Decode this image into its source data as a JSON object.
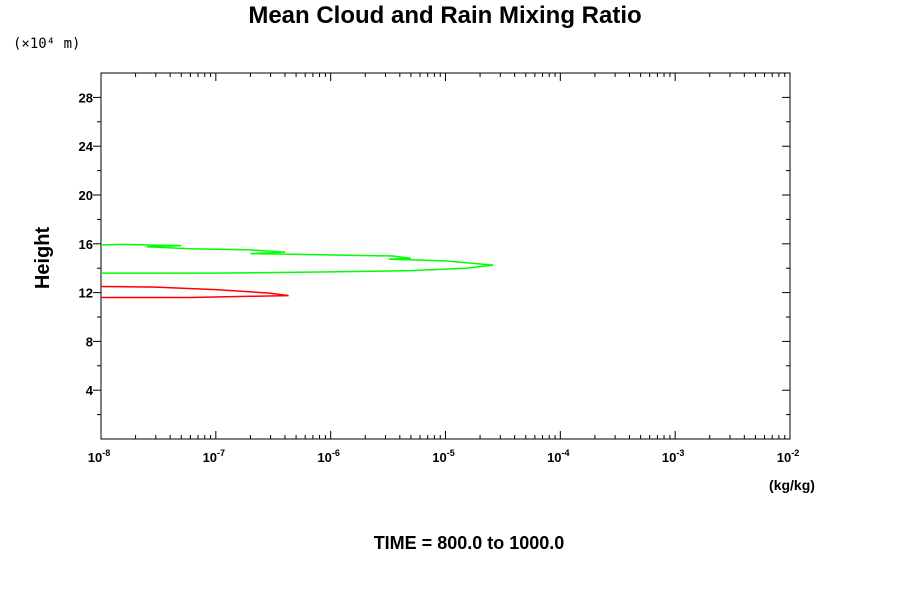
{
  "chart_data": {
    "type": "line",
    "title": "Mean Cloud and Rain Mixing Ratio",
    "ylabel": "Height",
    "y_unit": "(×10⁴ m)",
    "xlabel_unit": "(kg/kg)",
    "x_scale": "log",
    "xlim": [
      1e-08,
      0.01
    ],
    "ylim": [
      0,
      30
    ],
    "y_ticks": [
      4,
      8,
      12,
      16,
      20,
      24,
      28
    ],
    "x_tick_labels": [
      {
        "base": "10",
        "exp": "-8"
      },
      {
        "base": "10",
        "exp": "-7"
      },
      {
        "base": "10",
        "exp": "-6"
      },
      {
        "base": "10",
        "exp": "-5"
      },
      {
        "base": "10",
        "exp": "-4"
      },
      {
        "base": "10",
        "exp": "-3"
      },
      {
        "base": "10",
        "exp": "-2"
      }
    ],
    "grid": false,
    "series": [
      {
        "color": "#00ff00",
        "points": [
          [
            1e-08,
            15.9
          ],
          [
            1.5e-08,
            15.95
          ],
          [
            2.5e-08,
            15.9
          ],
          [
            5e-08,
            15.85
          ],
          [
            2.5e-08,
            15.75
          ],
          [
            6e-08,
            15.6
          ],
          [
            2e-07,
            15.5
          ],
          [
            4e-07,
            15.3
          ],
          [
            2e-07,
            15.2
          ],
          [
            8e-07,
            15.1
          ],
          [
            3.5e-06,
            15.0
          ],
          [
            5e-06,
            14.8
          ],
          [
            3.2e-06,
            14.75
          ],
          [
            1e-05,
            14.6
          ],
          [
            2.6e-05,
            14.25
          ],
          [
            1.5e-05,
            14.0
          ],
          [
            5e-06,
            13.8
          ],
          [
            1e-06,
            13.7
          ],
          [
            1e-07,
            13.6
          ],
          [
            1e-08,
            13.6
          ]
        ]
      },
      {
        "color": "#ff0000",
        "points": [
          [
            1e-08,
            12.5
          ],
          [
            3e-08,
            12.45
          ],
          [
            1e-07,
            12.25
          ],
          [
            3e-07,
            11.95
          ],
          [
            4.3e-07,
            11.75
          ],
          [
            2e-07,
            11.7
          ],
          [
            6e-08,
            11.6
          ],
          [
            1e-08,
            11.6
          ]
        ]
      }
    ]
  },
  "footer": "TIME = 800.0 to 1000.0"
}
